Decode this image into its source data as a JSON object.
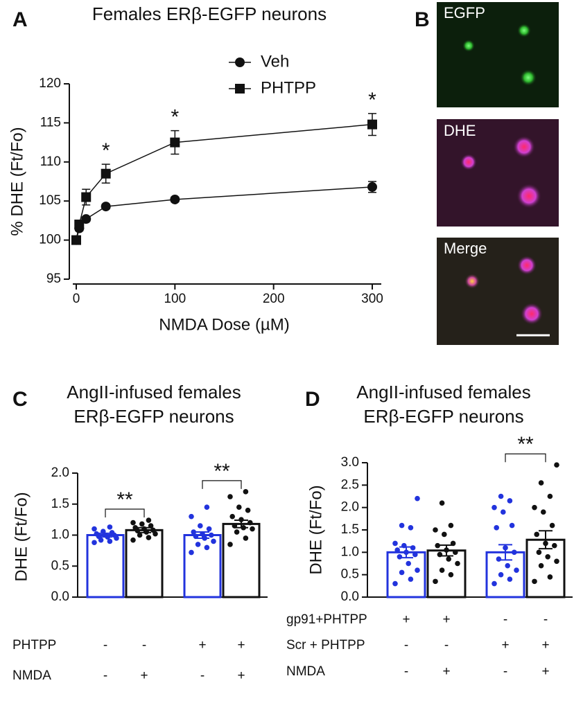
{
  "chart_data": [
    {
      "type": "line",
      "label": "A",
      "title": "Females ERβ-EGFP neurons",
      "x_label": "NMDA Dose (µM)",
      "y_label": "% DHE (Ft/Fo)",
      "x": [
        0,
        3,
        10,
        30,
        100,
        300
      ],
      "series": [
        {
          "name": "Veh",
          "color": "#111111",
          "marker": "circle",
          "values": [
            100,
            101.5,
            102.7,
            104.3,
            105.2,
            106.8
          ],
          "errors": [
            0,
            0.3,
            0.3,
            0.3,
            0.3,
            0.7
          ]
        },
        {
          "name": "PHTPP",
          "color": "#111111",
          "marker": "square",
          "values": [
            100,
            102,
            105.5,
            108.5,
            112.5,
            114.8
          ],
          "errors": [
            0,
            0.5,
            1.0,
            1.2,
            1.5,
            1.4
          ]
        }
      ],
      "significance": [
        null,
        null,
        null,
        "*",
        "*",
        "*"
      ],
      "xlim": [
        0,
        300
      ],
      "xticks": [
        0,
        100,
        200,
        300
      ],
      "ylim": [
        95,
        120
      ],
      "yticks": [
        95,
        100,
        105,
        110,
        115,
        120
      ]
    },
    {
      "type": "bar",
      "label": "C",
      "title": [
        "AngII-infused females",
        "ERβ-EGFP neurons"
      ],
      "y_label": "DHE (Ft/Fo)",
      "categories": [
        null,
        null,
        null,
        null
      ],
      "values": [
        1.0,
        1.08,
        1.0,
        1.18
      ],
      "errors": [
        0.03,
        0.04,
        0.05,
        0.06
      ],
      "colors": [
        "#2233dd",
        "#111111",
        "#2233dd",
        "#111111"
      ],
      "points": [
        [
          0.88,
          0.9,
          0.92,
          0.95,
          0.97,
          0.98,
          1.0,
          1.0,
          1.02,
          1.04,
          1.06,
          1.1,
          1.13
        ],
        [
          0.92,
          0.96,
          1.0,
          1.02,
          1.05,
          1.07,
          1.08,
          1.1,
          1.12,
          1.15,
          1.18,
          1.2,
          1.24
        ],
        [
          0.72,
          0.8,
          0.85,
          0.9,
          0.95,
          0.98,
          1.0,
          1.02,
          1.05,
          1.1,
          1.15,
          1.3,
          1.45
        ],
        [
          0.85,
          0.95,
          1.05,
          1.1,
          1.12,
          1.15,
          1.2,
          1.25,
          1.3,
          1.4,
          1.45,
          1.62,
          1.7
        ]
      ],
      "significance": [
        "**",
        "**"
      ],
      "conditions": [
        {
          "name": "PHTPP",
          "values": [
            "-",
            "-",
            "+",
            "+"
          ]
        },
        {
          "name": "NMDA",
          "values": [
            "-",
            "+",
            "-",
            "+"
          ]
        }
      ],
      "ylim": [
        0,
        2
      ],
      "yticks": [
        {
          "value": 0,
          "label": "0.0"
        },
        {
          "value": 0.5,
          "label": "0.5"
        },
        {
          "value": 1,
          "label": "1.0"
        },
        {
          "value": 1.5,
          "label": "1.5"
        },
        {
          "value": 2,
          "label": "2.0"
        }
      ]
    },
    {
      "type": "bar",
      "label": "D",
      "title": [
        "AngII-infused females",
        "ERβ-EGFP neurons"
      ],
      "y_label": "DHE (Ft/Fo)",
      "categories": [
        null,
        null,
        null,
        null
      ],
      "values": [
        1.0,
        1.04,
        1.0,
        1.28
      ],
      "errors": [
        0.12,
        0.12,
        0.17,
        0.2
      ],
      "colors": [
        "#2233dd",
        "#111111",
        "#2233dd",
        "#111111"
      ],
      "points": [
        [
          0.3,
          0.4,
          0.55,
          0.6,
          0.75,
          0.9,
          0.95,
          1.0,
          1.05,
          1.1,
          1.15,
          1.2,
          1.55,
          1.6,
          2.2
        ],
        [
          0.35,
          0.5,
          0.6,
          0.75,
          0.85,
          0.95,
          1.0,
          1.05,
          1.15,
          1.2,
          1.4,
          1.5,
          1.6,
          2.1
        ],
        [
          0.3,
          0.4,
          0.5,
          0.6,
          0.7,
          0.85,
          1.0,
          1.1,
          1.55,
          1.6,
          1.9,
          2.0,
          2.15,
          2.25
        ],
        [
          0.35,
          0.45,
          0.7,
          0.8,
          0.9,
          1.0,
          1.15,
          1.2,
          1.4,
          1.6,
          1.9,
          2.0,
          2.25,
          2.55,
          2.95
        ]
      ],
      "significance": [
        null,
        "**"
      ],
      "conditions": [
        {
          "name": "gp91+PHTPP",
          "values": [
            "+",
            "+",
            "-",
            "-"
          ]
        },
        {
          "name": "Scr + PHTPP",
          "values": [
            "-",
            "-",
            "+",
            "+"
          ]
        },
        {
          "name": "NMDA",
          "values": [
            "-",
            "+",
            "-",
            "+"
          ]
        }
      ],
      "ylim": [
        0,
        3
      ],
      "yticks": [
        {
          "value": 0,
          "label": "0.0"
        },
        {
          "value": 0.5,
          "label": "0.5"
        },
        {
          "value": 1,
          "label": "1.0"
        },
        {
          "value": 1.5,
          "label": "1.5"
        },
        {
          "value": 2,
          "label": "2.0"
        },
        {
          "value": 2.5,
          "label": "2.5"
        },
        {
          "value": 3,
          "label": "3.0"
        }
      ]
    }
  ],
  "images": {
    "label": "B",
    "panels": [
      "EGFP",
      "DHE",
      "Merge"
    ]
  }
}
